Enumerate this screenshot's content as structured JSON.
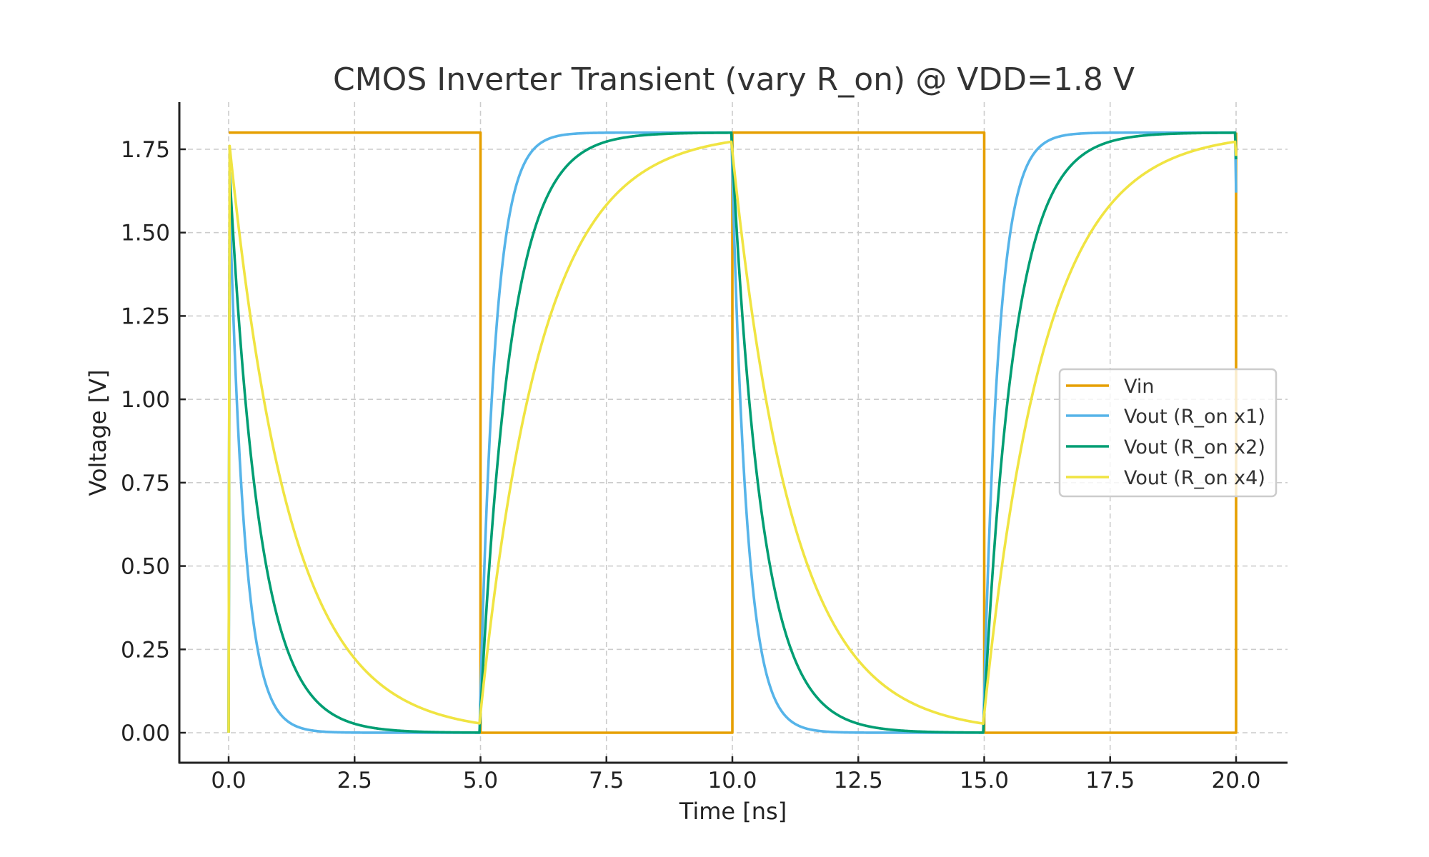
{
  "chart_data": {
    "type": "line",
    "title": "CMOS Inverter Transient (vary R_on) @ VDD=1.8 V",
    "xlabel": "Time [ns]",
    "ylabel": "Voltage [V]",
    "xlim": [
      -1.0,
      21.0
    ],
    "ylim": [
      -0.09,
      1.89
    ],
    "xticks": [
      0.0,
      2.5,
      5.0,
      7.5,
      10.0,
      12.5,
      15.0,
      17.5,
      20.0
    ],
    "xtick_labels": [
      "0.0",
      "2.5",
      "5.0",
      "7.5",
      "10.0",
      "12.5",
      "15.0",
      "17.5",
      "20.0"
    ],
    "yticks": [
      0.0,
      0.25,
      0.5,
      0.75,
      1.0,
      1.25,
      1.5,
      1.75
    ],
    "ytick_labels": [
      "0.00",
      "0.25",
      "0.50",
      "0.75",
      "1.00",
      "1.25",
      "1.50",
      "1.75"
    ],
    "grid": true,
    "legend_position": "center-right",
    "vdd": 1.8,
    "period_ns": 10.0,
    "t_start": 0.0,
    "t_end": 20.0,
    "series": [
      {
        "name": "Vin",
        "label": "Vin",
        "color": "#E69F00",
        "kind": "square",
        "points": [
          [
            0.0,
            1.8
          ],
          [
            5.0,
            1.8
          ],
          [
            5.0,
            0.0
          ],
          [
            10.0,
            0.0
          ],
          [
            10.0,
            1.8
          ],
          [
            15.0,
            1.8
          ],
          [
            15.0,
            0.0
          ],
          [
            20.0,
            0.0
          ],
          [
            20.0,
            1.8
          ]
        ]
      },
      {
        "name": "Vout_x1",
        "label": "Vout (R_on x1)",
        "color": "#56B4E9",
        "kind": "rc",
        "tau_ns": 0.3,
        "initial_peak": 1.6,
        "final_value": 1.62
      },
      {
        "name": "Vout_x2",
        "label": "Vout (R_on x2)",
        "color": "#009E73",
        "kind": "rc",
        "tau_ns": 0.6,
        "initial_peak": 1.68,
        "final_value": 1.72
      },
      {
        "name": "Vout_x4",
        "label": "Vout (R_on x4)",
        "color": "#F0E442",
        "kind": "rc",
        "tau_ns": 1.2,
        "initial_peak": 1.76,
        "final_value": 1.73
      }
    ],
    "sampled_values": {
      "t": [
        0.0,
        0.5,
        1.0,
        2.0,
        3.0,
        5.0,
        5.5,
        6.0,
        7.0,
        8.0,
        10.0
      ],
      "Vout (R_on x1)": [
        0.0,
        0.3,
        0.06,
        0.0,
        0.0,
        0.0,
        1.45,
        1.75,
        1.8,
        1.8,
        1.8
      ],
      "Vout (R_on x2)": [
        0.0,
        0.73,
        0.32,
        0.06,
        0.01,
        0.0,
        1.02,
        1.45,
        1.74,
        1.79,
        1.8
      ],
      "Vout (R_on x4)": [
        0.0,
        1.15,
        0.76,
        0.33,
        0.14,
        0.03,
        0.63,
        1.01,
        1.44,
        1.62,
        1.77
      ]
    }
  }
}
